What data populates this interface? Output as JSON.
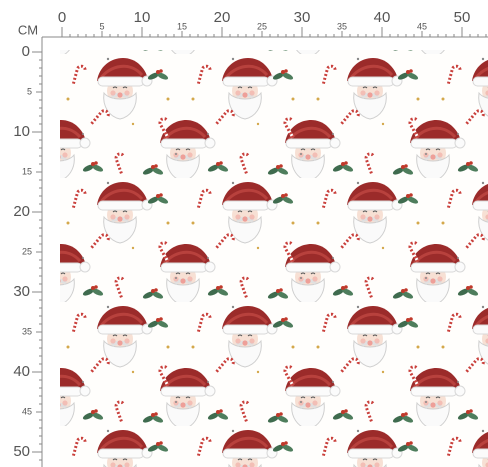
{
  "unit": "CM",
  "top_ruler": {
    "major": [
      "0",
      "10",
      "20",
      "30",
      "40",
      "50"
    ],
    "minor": [
      "5",
      "15",
      "25",
      "35",
      "45"
    ]
  },
  "left_ruler": {
    "major": [
      "0",
      "10",
      "20",
      "30",
      "40",
      "50"
    ],
    "minor": [
      "5",
      "15",
      "25",
      "35",
      "45"
    ]
  }
}
